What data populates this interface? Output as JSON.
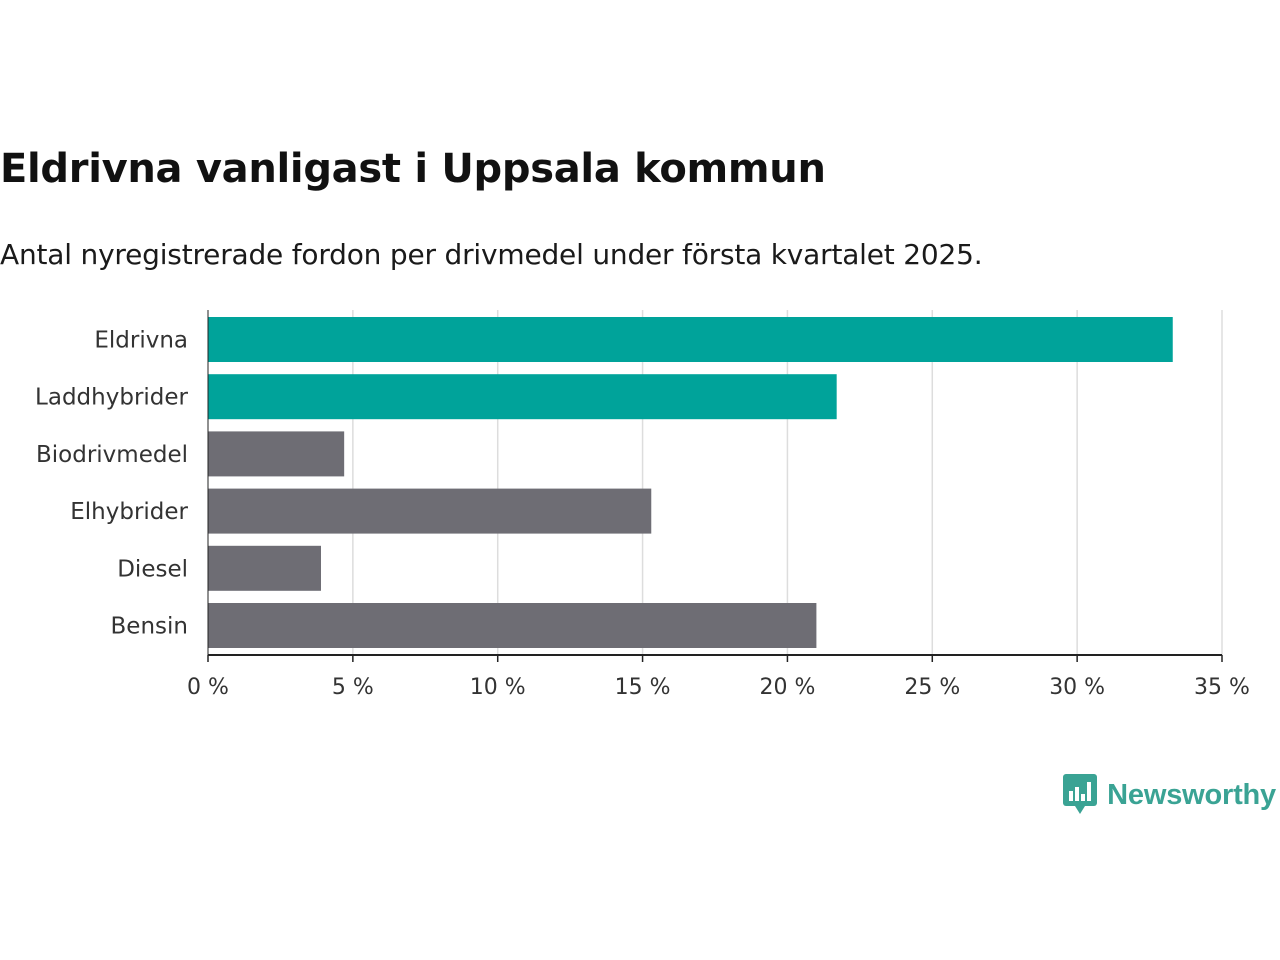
{
  "header": {
    "title": "Eldrivna vanligast i Uppsala kommun",
    "subtitle": "Antal nyregistrerade fordon per drivmedel under första kvartalet 2025."
  },
  "chart_data": {
    "type": "bar",
    "orientation": "horizontal",
    "categories": [
      "Eldrivna",
      "Laddhybrider",
      "Biodrivmedel",
      "Elhybrider",
      "Diesel",
      "Bensin"
    ],
    "values": [
      33.3,
      21.7,
      4.7,
      15.3,
      3.9,
      21.0
    ],
    "unit": "%",
    "xlim": [
      0,
      35
    ],
    "ticks": [
      0,
      5,
      10,
      15,
      20,
      25,
      30,
      35
    ],
    "tick_labels": [
      "0 %",
      "5 %",
      "10 %",
      "15 %",
      "20 %",
      "25 %",
      "30 %",
      "35 %"
    ],
    "grid": true,
    "highlight": [
      true,
      true,
      false,
      false,
      false,
      false
    ],
    "colors": {
      "highlight": "#00a39a",
      "default": "#6e6d74",
      "grid": "#dddddd",
      "axis": "#222222"
    }
  },
  "brand": {
    "name": "Newsworthy",
    "icon": "newsworthy-logo-icon",
    "color": "#3aa394"
  }
}
